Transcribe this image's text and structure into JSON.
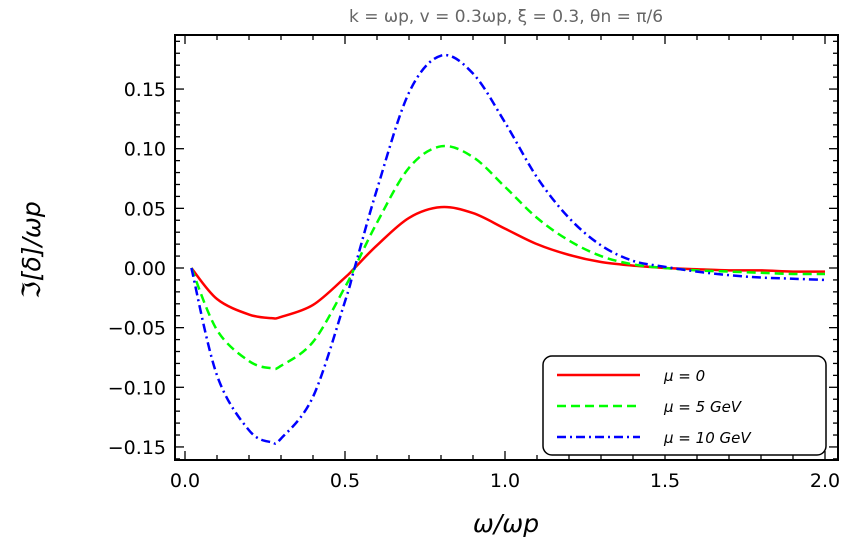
{
  "chart_data": {
    "type": "line",
    "title": "k = ωp, v = 0.3ωp, ξ = 0.3, θn = π/6",
    "xlabel": "ω/ωp",
    "ylabel": "ℑ[δ]/ωp",
    "xlim": [
      0,
      2.0
    ],
    "ylim": [
      -0.16,
      0.19
    ],
    "x_ticks": [
      "0.0",
      "0.5",
      "1.0",
      "1.5",
      "2.0"
    ],
    "y_ticks": [
      "−0.15",
      "−0.10",
      "−0.05",
      "0.00",
      "0.05",
      "0.10",
      "0.15"
    ],
    "legend_position": "bottom-right",
    "grid": false,
    "x": [
      0.02,
      0.1,
      0.2,
      0.27,
      0.3,
      0.4,
      0.5,
      0.53,
      0.6,
      0.7,
      0.8,
      0.9,
      1.0,
      1.1,
      1.2,
      1.3,
      1.4,
      1.5,
      1.6,
      1.7,
      1.8,
      1.9,
      2.0
    ],
    "series": [
      {
        "name": "μ = 0",
        "color": "#ff0000",
        "style": "solid",
        "values": [
          0.0,
          -0.026,
          -0.039,
          -0.042,
          -0.041,
          -0.031,
          -0.008,
          0.0,
          0.019,
          0.042,
          0.051,
          0.046,
          0.033,
          0.02,
          0.011,
          0.005,
          0.002,
          0.0,
          -0.001,
          -0.002,
          -0.002,
          -0.003,
          -0.003
        ]
      },
      {
        "name": "μ = 5 GeV",
        "color": "#00ff00",
        "style": "dashed",
        "values": [
          0.0,
          -0.052,
          -0.078,
          -0.084,
          -0.082,
          -0.062,
          -0.016,
          0.0,
          0.038,
          0.084,
          0.102,
          0.093,
          0.068,
          0.042,
          0.023,
          0.01,
          0.003,
          0.0,
          -0.002,
          -0.003,
          -0.004,
          -0.005,
          -0.005
        ]
      },
      {
        "name": "μ = 10 GeV",
        "color": "#0000ff",
        "style": "dashdot",
        "values": [
          0.0,
          -0.09,
          -0.136,
          -0.146,
          -0.143,
          -0.108,
          -0.028,
          0.0,
          0.066,
          0.147,
          0.178,
          0.163,
          0.122,
          0.076,
          0.042,
          0.019,
          0.006,
          0.001,
          -0.003,
          -0.006,
          -0.008,
          -0.009,
          -0.01
        ]
      }
    ]
  }
}
